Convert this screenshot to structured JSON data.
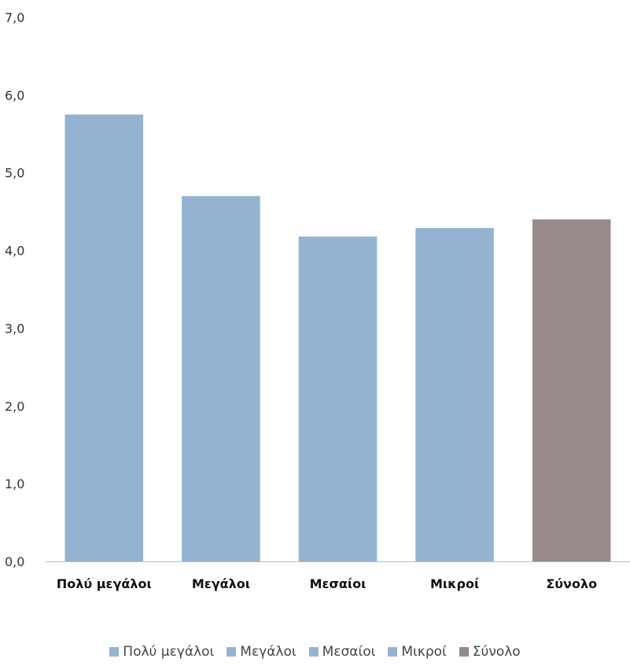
{
  "chart_data": {
    "type": "bar",
    "categories": [
      "Πολύ μεγάλοι",
      "Μεγάλοι",
      "Μεσαίοι",
      "Μικροί",
      "Σύνολο"
    ],
    "values": [
      5.75,
      4.7,
      4.18,
      4.29,
      4.4
    ],
    "colors": [
      "#95b3d1",
      "#95b3d1",
      "#95b3d1",
      "#95b3d1",
      "#968b89"
    ],
    "ylim": [
      0,
      7
    ],
    "yticks": [
      "0,0",
      "1,0",
      "2,0",
      "3,0",
      "4,0",
      "5,0",
      "6,0",
      "7,0"
    ],
    "grid": false,
    "legend_position": "bottom",
    "legend": [
      {
        "label": "Πολύ μεγάλοι",
        "color": "#95b3d1"
      },
      {
        "label": "Μεγάλοι",
        "color": "#95b3d1"
      },
      {
        "label": "Μεσαίοι",
        "color": "#95b3d1"
      },
      {
        "label": "Μικροί",
        "color": "#95b3d1"
      },
      {
        "label": "Σύνολο",
        "color": "#968b89"
      }
    ]
  }
}
